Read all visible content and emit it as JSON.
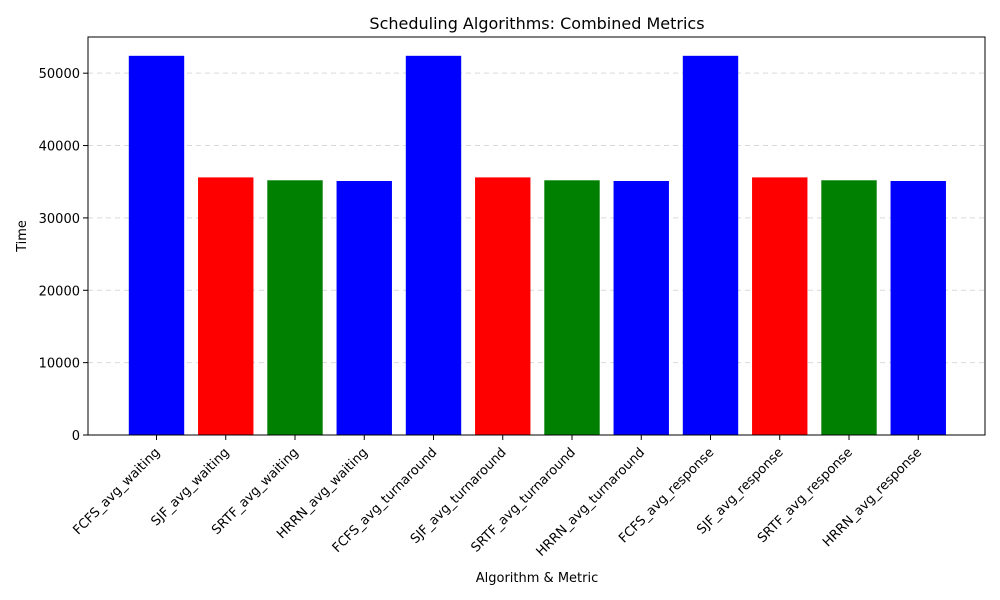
{
  "chart_data": {
    "type": "bar",
    "title": "Scheduling Algorithms: Combined Metrics",
    "xlabel": "Algorithm & Metric",
    "ylabel": "Time",
    "categories": [
      "FCFS_avg_waiting",
      "SJF_avg_waiting",
      "SRTF_avg_waiting",
      "HRRN_avg_waiting",
      "FCFS_avg_turnaround",
      "SJF_avg_turnaround",
      "SRTF_avg_turnaround",
      "HRRN_avg_turnaround",
      "FCFS_avg_response",
      "SJF_avg_response",
      "SRTF_avg_response",
      "HRRN_avg_response"
    ],
    "values": [
      52400,
      35600,
      35200,
      35100,
      52400,
      35600,
      35200,
      35100,
      52400,
      35600,
      35200,
      35100
    ],
    "bar_colors": [
      "#0000ff",
      "#ff0000",
      "#008000",
      "#0000ff",
      "#0000ff",
      "#ff0000",
      "#008000",
      "#0000ff",
      "#0000ff",
      "#ff0000",
      "#008000",
      "#0000ff"
    ],
    "ylim": [
      0,
      55000
    ],
    "yticks": [
      0,
      10000,
      20000,
      30000,
      40000,
      50000
    ],
    "grid": "y-dashed",
    "legend": "none"
  }
}
